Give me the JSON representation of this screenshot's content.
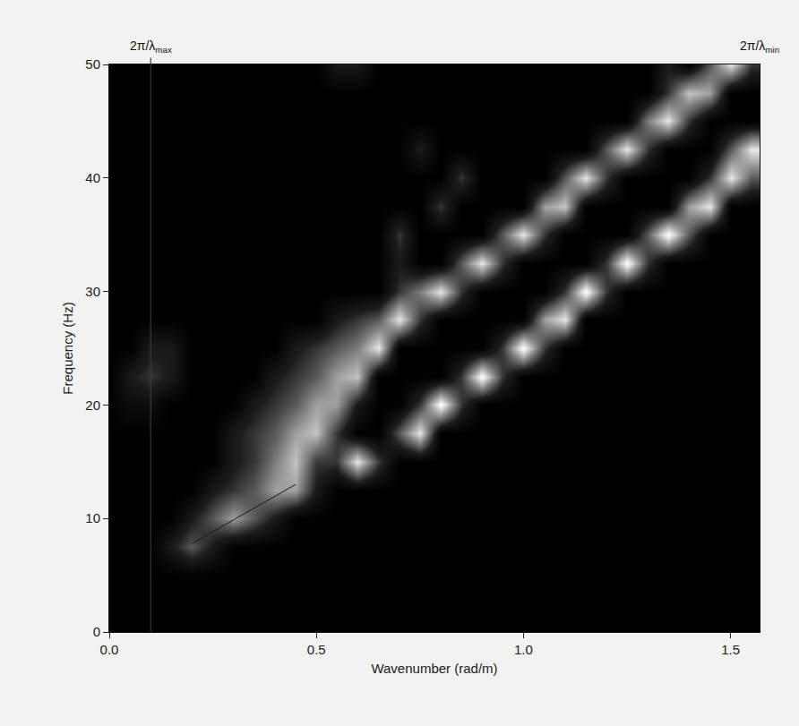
{
  "chart_data": {
    "type": "heatmap",
    "x_label": "Wavenumber (rad/m)",
    "y_label": "Frequency (Hz)",
    "x": [
      0,
      0.05,
      0.1,
      0.15,
      0.2,
      0.25,
      0.3,
      0.35,
      0.4,
      0.45,
      0.5,
      0.55,
      0.6,
      0.65,
      0.7,
      0.75,
      0.8,
      0.85,
      0.9,
      0.95,
      1.0,
      1.05,
      1.1,
      1.15,
      1.2,
      1.25,
      1.3,
      1.35,
      1.4,
      1.45,
      1.5,
      1.55
    ],
    "y": [
      0,
      2.5,
      5,
      7.5,
      10,
      12.5,
      15,
      17.5,
      20,
      22.5,
      25,
      27.5,
      30,
      32.5,
      35,
      37.5,
      40,
      42.5,
      45,
      47.5,
      50
    ],
    "cells": [
      [
        0,
        0,
        0,
        0,
        0,
        0,
        0,
        0,
        0,
        0,
        0,
        0,
        0,
        0,
        0,
        0,
        0,
        0,
        0,
        0,
        0,
        0,
        0,
        0,
        0,
        0,
        0,
        0,
        0,
        0,
        0,
        0
      ],
      [
        0,
        0,
        0,
        0,
        0,
        0,
        0,
        0,
        0,
        0,
        0,
        0,
        0,
        0,
        0,
        0,
        0,
        0,
        0,
        0,
        0,
        0,
        0,
        0,
        0,
        0,
        0,
        0,
        0,
        0,
        0,
        0
      ],
      [
        0,
        0,
        0,
        0,
        0,
        0,
        0,
        0,
        0,
        0,
        0,
        0,
        0,
        0,
        0,
        0,
        0,
        0,
        0,
        0,
        0,
        0,
        0,
        0,
        0,
        0,
        0,
        0,
        0,
        0,
        0,
        0
      ],
      [
        0,
        0,
        0,
        2,
        4,
        2,
        0,
        0,
        0,
        0,
        0,
        0,
        0,
        0,
        0,
        0,
        0,
        0,
        0,
        0,
        0,
        0,
        0,
        0,
        0,
        0,
        0,
        0,
        0,
        0,
        0,
        0
      ],
      [
        0,
        0,
        0,
        0,
        2,
        4,
        6,
        4,
        2,
        0,
        0,
        0,
        0,
        0,
        0,
        0,
        0,
        0,
        0,
        0,
        0,
        0,
        0,
        0,
        0,
        0,
        0,
        0,
        0,
        0,
        0,
        0
      ],
      [
        0,
        0,
        0,
        0,
        0,
        2,
        3,
        4,
        6,
        6,
        2,
        0,
        0,
        0,
        0,
        0,
        0,
        0,
        0,
        0,
        0,
        0,
        0,
        0,
        0,
        0,
        0,
        0,
        0,
        0,
        0,
        0
      ],
      [
        0,
        0,
        0,
        0,
        0,
        0,
        2,
        3,
        5,
        7,
        3,
        3,
        8,
        3,
        0,
        0,
        0,
        0,
        0,
        0,
        0,
        0,
        0,
        0,
        0,
        0,
        0,
        0,
        0,
        0,
        0,
        0
      ],
      [
        0,
        0,
        0,
        0,
        0,
        0,
        2,
        3,
        4,
        6,
        7,
        3,
        0,
        0,
        4,
        8,
        0,
        0,
        0,
        0,
        0,
        0,
        0,
        0,
        0,
        0,
        0,
        0,
        0,
        0,
        0,
        0
      ],
      [
        0,
        1,
        1,
        0,
        0,
        0,
        0,
        2,
        3,
        4,
        6,
        6,
        2,
        0,
        0,
        3,
        9,
        3,
        0,
        0,
        0,
        0,
        0,
        0,
        0,
        0,
        0,
        0,
        0,
        0,
        0,
        0
      ],
      [
        0,
        2,
        3,
        2,
        0,
        0,
        0,
        0,
        2,
        3,
        4,
        6,
        7,
        0,
        0,
        0,
        0,
        3,
        9,
        3,
        0,
        0,
        0,
        0,
        0,
        0,
        0,
        0,
        0,
        0,
        0,
        0
      ],
      [
        0,
        0,
        2,
        2,
        0,
        0,
        0,
        0,
        0,
        2,
        3,
        4,
        5,
        8,
        0,
        0,
        0,
        0,
        0,
        3,
        9,
        3,
        0,
        0,
        0,
        0,
        0,
        0,
        0,
        0,
        0,
        0
      ],
      [
        0,
        0,
        0,
        0,
        0,
        0,
        0,
        0,
        0,
        0,
        0,
        2,
        3,
        4,
        8,
        3,
        0,
        0,
        0,
        0,
        0,
        6,
        8,
        0,
        0,
        0,
        0,
        0,
        0,
        0,
        0,
        0
      ],
      [
        0,
        0,
        0,
        0,
        0,
        0,
        0,
        0,
        0,
        0,
        0,
        0,
        0,
        0,
        3,
        5,
        8,
        3,
        0,
        0,
        0,
        0,
        3,
        9,
        3,
        0,
        0,
        0,
        0,
        0,
        0,
        0
      ],
      [
        0,
        0,
        0,
        0,
        0,
        0,
        0,
        0,
        0,
        0,
        0,
        0,
        0,
        0,
        2,
        0,
        0,
        4,
        8,
        3,
        0,
        0,
        0,
        0,
        3,
        9,
        3,
        0,
        0,
        0,
        0,
        0
      ],
      [
        0,
        0,
        0,
        0,
        0,
        0,
        0,
        0,
        0,
        0,
        0,
        0,
        0,
        0,
        3,
        0,
        0,
        0,
        0,
        4,
        8,
        3,
        0,
        0,
        0,
        0,
        4,
        9,
        4,
        0,
        0,
        0
      ],
      [
        0,
        0,
        0,
        0,
        0,
        0,
        0,
        0,
        0,
        0,
        0,
        0,
        0,
        0,
        0,
        0,
        3,
        0,
        0,
        0,
        0,
        6,
        7,
        0,
        0,
        0,
        0,
        0,
        6,
        8,
        0,
        0
      ],
      [
        0,
        0,
        0,
        0,
        0,
        0,
        0,
        0,
        0,
        0,
        0,
        0,
        0,
        0,
        0,
        0,
        0,
        3,
        0,
        0,
        0,
        0,
        4,
        8,
        3,
        0,
        0,
        0,
        0,
        3,
        8,
        4
      ],
      [
        0,
        0,
        0,
        0,
        0,
        0,
        0,
        0,
        0,
        0,
        0,
        0,
        0,
        0,
        0,
        2,
        0,
        0,
        0,
        0,
        0,
        0,
        0,
        0,
        4,
        8,
        3,
        0,
        0,
        0,
        4,
        8
      ],
      [
        0,
        0,
        0,
        0,
        0,
        0,
        0,
        0,
        0,
        0,
        0,
        0,
        0,
        0,
        0,
        0,
        0,
        0,
        0,
        0,
        0,
        0,
        0,
        0,
        0,
        0,
        5,
        8,
        3,
        0,
        0,
        0
      ],
      [
        0,
        0,
        0,
        0,
        0,
        0,
        0,
        0,
        0,
        0,
        0,
        0,
        0,
        0,
        0,
        0,
        0,
        0,
        0,
        0,
        0,
        0,
        0,
        0,
        0,
        0,
        0,
        3,
        7,
        6,
        0,
        0
      ],
      [
        0,
        0,
        0,
        0,
        0,
        0,
        0,
        0,
        0,
        0,
        0,
        2,
        2,
        0,
        0,
        0,
        0,
        0,
        0,
        0,
        0,
        0,
        0,
        0,
        0,
        0,
        0,
        2,
        0,
        4,
        8,
        3
      ]
    ],
    "picked_curve": {
      "x": [
        0.2,
        0.45
      ],
      "y": [
        7.8,
        13
      ],
      "color": "#1a1a1a"
    },
    "guide_lines": [
      0.1
    ],
    "annotations": [
      {
        "text": "2π/λ",
        "sub": "max",
        "x": 0.1
      },
      {
        "text": "2π/λ",
        "sub": "min",
        "x": 1.57
      }
    ],
    "xlim": [
      0,
      1.57
    ],
    "ylim": [
      0,
      50
    ],
    "xticks": [
      {
        "value": 0,
        "label": "0.0"
      },
      0.5,
      {
        "value": 1,
        "label": "1.0"
      },
      1.5
    ],
    "yticks": [
      0,
      10,
      20,
      30,
      40,
      50
    ],
    "grid": false
  }
}
